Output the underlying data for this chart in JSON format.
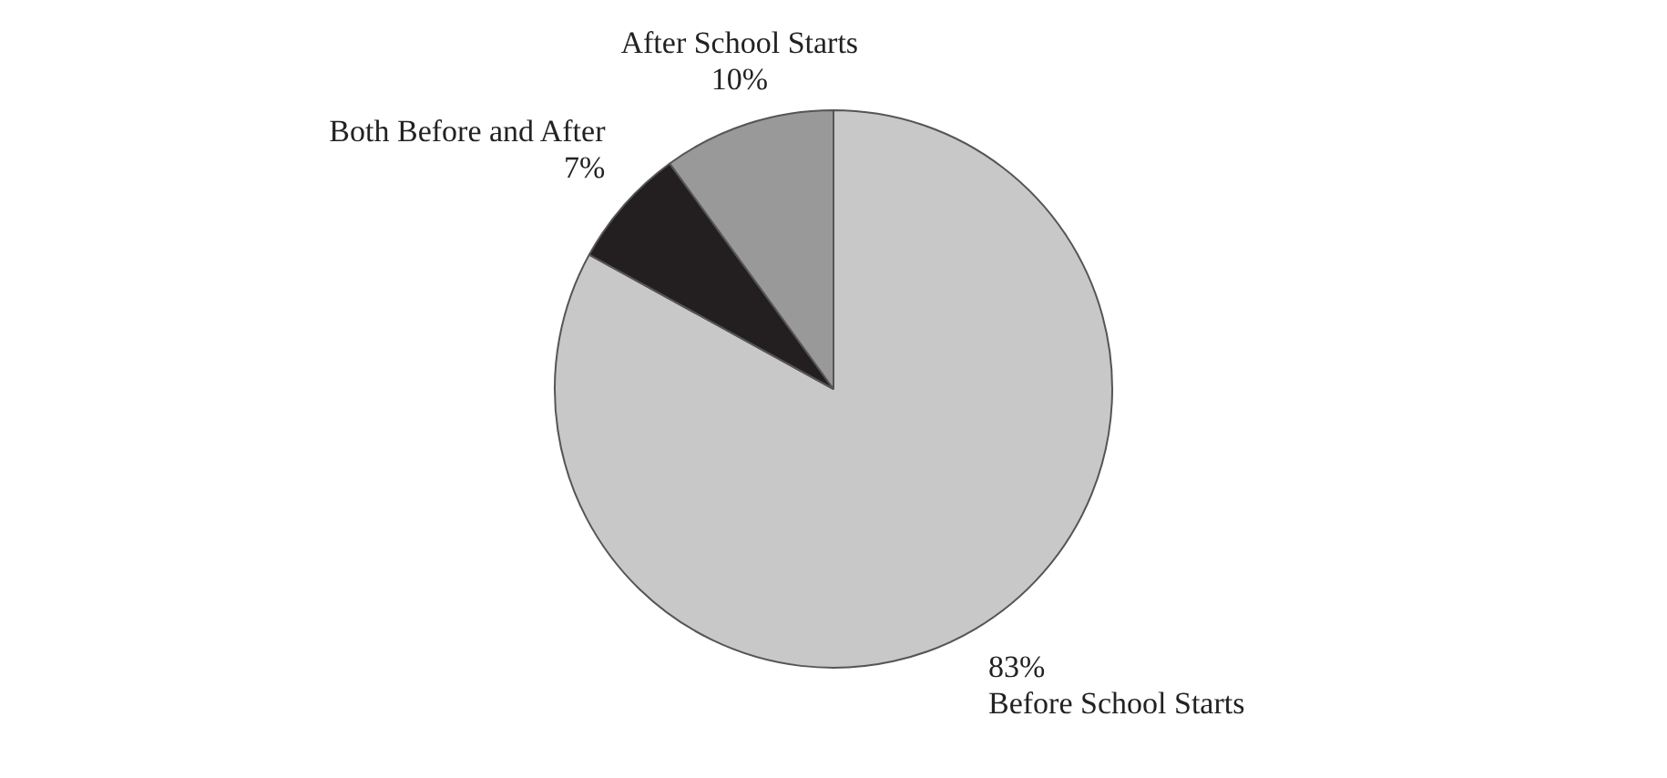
{
  "chart_data": {
    "type": "pie",
    "categories": [
      "Before School Starts",
      "Both Before and After",
      "After School Starts"
    ],
    "values": [
      83,
      7,
      10
    ],
    "colors": [
      "#c8c8c8",
      "#231f20",
      "#999999"
    ],
    "value_labels": [
      "83%",
      "7%",
      "10%"
    ],
    "legend": false
  }
}
